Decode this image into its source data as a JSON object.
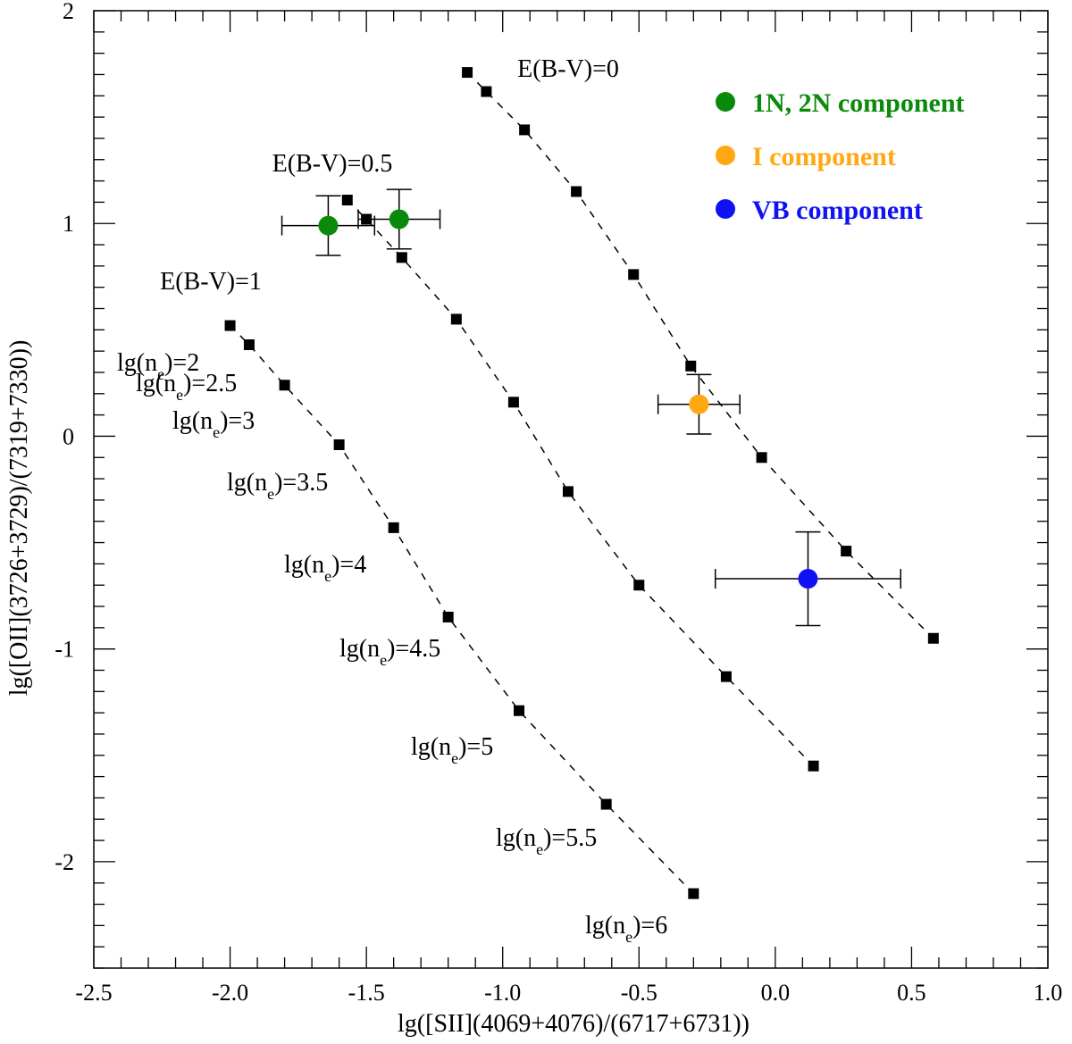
{
  "chart_data": {
    "type": "scatter",
    "title": "",
    "xlabel": "lg([SII](4069+4076)/(6717+6731))",
    "ylabel": "lg([OII](3726+3729)/(7319+7330))",
    "xlim": [
      -2.5,
      1.0
    ],
    "ylim": [
      -2.5,
      2.0
    ],
    "x_ticks": [
      -2.5,
      -2.0,
      -1.5,
      -1.0,
      -0.5,
      0.0,
      0.5,
      1.0
    ],
    "x_tick_labels": [
      "-2.5",
      "-2.0",
      "-1.5",
      "-1.0",
      "-0.5",
      "0.0",
      "0.5",
      "1.0"
    ],
    "y_ticks": [
      -2,
      -1,
      0,
      1,
      2
    ],
    "y_tick_labels": [
      "-2",
      "-1",
      "0",
      "1",
      "2"
    ],
    "grid": false,
    "curves": [
      {
        "name": "E(B-V)=0",
        "label": "E(B-V)=0",
        "x": [
          -1.13,
          -1.06,
          -0.92,
          -0.73,
          -0.52,
          -0.31,
          -0.05,
          0.26,
          0.58
        ],
        "y": [
          1.71,
          1.62,
          1.44,
          1.15,
          0.76,
          0.33,
          -0.1,
          -0.54,
          -0.95
        ]
      },
      {
        "name": "E(B-V)=0.5",
        "label": "E(B-V)=0.5",
        "x": [
          -1.57,
          -1.5,
          -1.37,
          -1.17,
          -0.96,
          -0.76,
          -0.5,
          -0.18,
          0.14
        ],
        "y": [
          1.11,
          1.02,
          0.84,
          0.55,
          0.16,
          -0.26,
          -0.7,
          -1.13,
          -1.55
        ]
      },
      {
        "name": "E(B-V)=1",
        "label": "E(B-V)=1",
        "x": [
          -2.0,
          -1.93,
          -1.8,
          -1.6,
          -1.4,
          -1.2,
          -0.94,
          -0.62,
          -0.3
        ],
        "y": [
          0.52,
          0.43,
          0.24,
          -0.04,
          -0.43,
          -0.85,
          -1.29,
          -1.73,
          -2.15
        ]
      }
    ],
    "density_labels": [
      {
        "base": "lg(n",
        "sub": "e",
        "rest": ")=2"
      },
      {
        "base": "lg(n",
        "sub": "e",
        "rest": ")=2.5"
      },
      {
        "base": "lg(n",
        "sub": "e",
        "rest": ")=3"
      },
      {
        "base": "lg(n",
        "sub": "e",
        "rest": ")=3.5"
      },
      {
        "base": "lg(n",
        "sub": "e",
        "rest": ")=4"
      },
      {
        "base": "lg(n",
        "sub": "e",
        "rest": ")=4.5"
      },
      {
        "base": "lg(n",
        "sub": "e",
        "rest": ")=5"
      },
      {
        "base": "lg(n",
        "sub": "e",
        "rest": ")=5.5"
      },
      {
        "base": "lg(n",
        "sub": "e",
        "rest": ")=6"
      }
    ],
    "series": [
      {
        "name": "1N, 2N component",
        "color": "#0a8a0a",
        "points": [
          {
            "x": -1.64,
            "y": 0.99,
            "xerr": 0.17,
            "yerr": 0.14
          },
          {
            "x": -1.38,
            "y": 1.02,
            "xerr": 0.15,
            "yerr": 0.14
          }
        ]
      },
      {
        "name": "I component",
        "color": "#ffa812",
        "points": [
          {
            "x": -0.28,
            "y": 0.15,
            "xerr": 0.15,
            "yerr": 0.14
          }
        ]
      },
      {
        "name": "VB component",
        "color": "#1111f5",
        "points": [
          {
            "x": 0.12,
            "y": -0.67,
            "xerr": 0.34,
            "yerr": 0.22
          }
        ]
      }
    ],
    "legend": {
      "position": "top-right",
      "items": [
        {
          "label": "1N, 2N component",
          "color": "#0a8a0a"
        },
        {
          "label": "I component",
          "color": "#ffa812"
        },
        {
          "label": "VB component",
          "color": "#1111f5"
        }
      ]
    }
  }
}
